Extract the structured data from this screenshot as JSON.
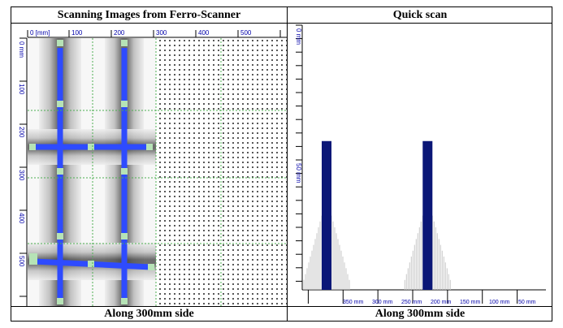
{
  "left_panel": {
    "title": "Scanning Images from Ferro-Scanner",
    "footer": "Along 300mm side",
    "x_axis": {
      "unit_label": "0 [mm]",
      "ticks": [
        "100",
        "200",
        "300",
        "400",
        "500"
      ]
    },
    "y_axis": {
      "unit_label": "0 mm",
      "ticks": [
        "100",
        "200",
        "300",
        "400",
        "500"
      ]
    },
    "grid_color": "#4caf50",
    "rebar_color": "#2e4bff"
  },
  "right_panel": {
    "title": "Quick scan",
    "footer": "Along 300mm side",
    "y_axis": {
      "labels": [
        "0 mm",
        "50 mm"
      ]
    },
    "x_axis": {
      "ticks": [
        "350 mm",
        "300 mm",
        "250 mm",
        "200 mm",
        "150 mm",
        "100 mm",
        "50 mm"
      ]
    },
    "bar_color": "#0b1777"
  },
  "chart_data": {
    "type": "bar",
    "title": "Quick scan",
    "xlabel": "",
    "ylabel": "",
    "x_positions_mm": [
      340,
      195
    ],
    "values_mm": [
      43,
      43
    ],
    "y_labels": [
      "0 mm",
      "50 mm"
    ],
    "x_ticks": [
      "350 mm",
      "300 mm",
      "250 mm",
      "200 mm",
      "150 mm",
      "100 mm",
      "50 mm"
    ]
  }
}
